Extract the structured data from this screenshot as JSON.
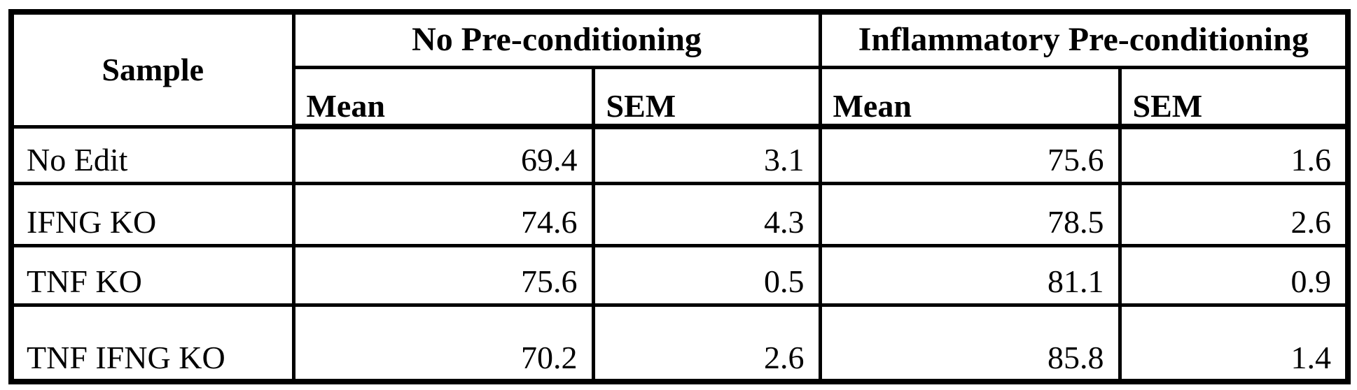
{
  "colors": {
    "background": "#ffffff",
    "border": "#000000",
    "text": "#000000"
  },
  "table": {
    "headers": {
      "sample": "Sample",
      "group1": "No Pre-conditioning",
      "group2": "Inflammatory Pre-conditioning",
      "mean": "Mean",
      "sem": "SEM"
    },
    "rows": [
      {
        "sample": "No Edit",
        "no_pre": {
          "mean": "69.4",
          "sem": "3.1"
        },
        "inflam_pre": {
          "mean": "75.6",
          "sem": "1.6"
        }
      },
      {
        "sample": "IFNG KO",
        "no_pre": {
          "mean": "74.6",
          "sem": "4.3"
        },
        "inflam_pre": {
          "mean": "78.5",
          "sem": "2.6"
        }
      },
      {
        "sample": "TNF KO",
        "no_pre": {
          "mean": "75.6",
          "sem": "0.5"
        },
        "inflam_pre": {
          "mean": "81.1",
          "sem": "0.9"
        }
      },
      {
        "sample": "TNF IFNG KO",
        "no_pre": {
          "mean": "70.2",
          "sem": "2.6"
        },
        "inflam_pre": {
          "mean": "85.8",
          "sem": "1.4"
        }
      }
    ]
  },
  "chart_data": {
    "type": "table",
    "title": "",
    "column_groups": [
      "Sample",
      "No Pre-conditioning",
      "Inflammatory Pre-conditioning"
    ],
    "columns": [
      "Sample",
      "No Pre-conditioning Mean",
      "No Pre-conditioning SEM",
      "Inflammatory Pre-conditioning Mean",
      "Inflammatory Pre-conditioning SEM"
    ],
    "rows": [
      [
        "No Edit",
        69.4,
        3.1,
        75.6,
        1.6
      ],
      [
        "IFNG KO",
        74.6,
        4.3,
        78.5,
        2.6
      ],
      [
        "TNF KO",
        75.6,
        0.5,
        81.1,
        0.9
      ],
      [
        "TNF IFNG KO",
        70.2,
        2.6,
        85.8,
        1.4
      ]
    ]
  }
}
